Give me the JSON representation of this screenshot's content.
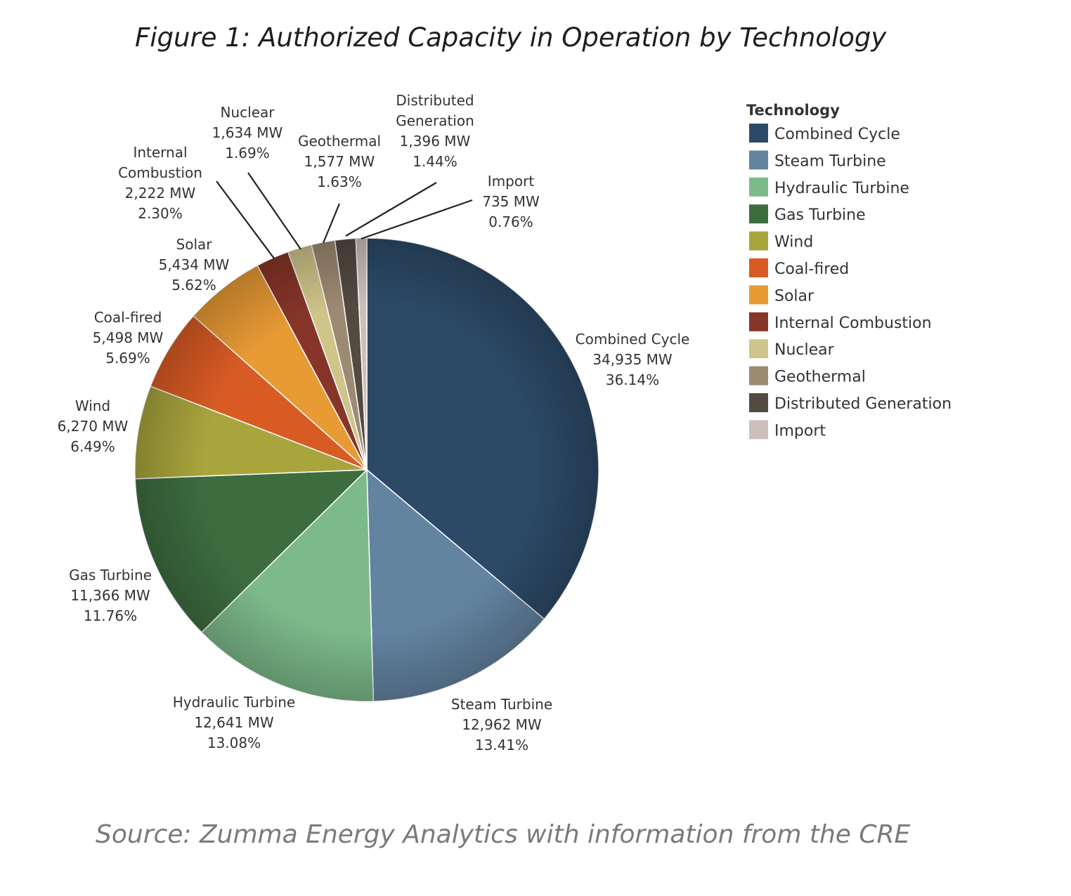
{
  "title": "Figure 1: Authorized Capacity in Operation by Technology",
  "source": "Source: Zumma Energy Analytics with information from the CRE",
  "chart_data": {
    "type": "pie",
    "legend_title": "Technology",
    "legend_position": "right",
    "slices": [
      {
        "name": "Combined Cycle",
        "label_lines": [
          "Combined Cycle"
        ],
        "value": 34935,
        "value_text": "34,935 MW",
        "percent": 36.14,
        "percent_text": "36.14%",
        "color": "#2c4a67"
      },
      {
        "name": "Steam Turbine",
        "label_lines": [
          "Steam Turbine"
        ],
        "value": 12962,
        "value_text": "12,962 MW",
        "percent": 13.41,
        "percent_text": "13.41%",
        "color": "#6384a1"
      },
      {
        "name": "Hydraulic Turbine",
        "label_lines": [
          "Hydraulic Turbine"
        ],
        "value": 12641,
        "value_text": "12,641 MW",
        "percent": 13.08,
        "percent_text": "13.08%",
        "color": "#7cba8a"
      },
      {
        "name": "Gas Turbine",
        "label_lines": [
          "Gas Turbine"
        ],
        "value": 11366,
        "value_text": "11,366 MW",
        "percent": 11.76,
        "percent_text": "11.76%",
        "color": "#3d6d3f"
      },
      {
        "name": "Wind",
        "label_lines": [
          "Wind"
        ],
        "value": 6270,
        "value_text": "6,270 MW",
        "percent": 6.49,
        "percent_text": "6.49%",
        "color": "#a9a53d"
      },
      {
        "name": "Coal-fired",
        "label_lines": [
          "Coal-fired"
        ],
        "value": 5498,
        "value_text": "5,498 MW",
        "percent": 5.69,
        "percent_text": "5.69%",
        "color": "#d95b24"
      },
      {
        "name": "Solar",
        "label_lines": [
          "Solar"
        ],
        "value": 5434,
        "value_text": "5,434 MW",
        "percent": 5.62,
        "percent_text": "5.62%",
        "color": "#e89a34"
      },
      {
        "name": "Internal Combustion",
        "label_lines": [
          "Internal",
          "Combustion"
        ],
        "value": 2222,
        "value_text": "2,222 MW",
        "percent": 2.3,
        "percent_text": "2.30%",
        "color": "#883529"
      },
      {
        "name": "Nuclear",
        "label_lines": [
          "Nuclear"
        ],
        "value": 1634,
        "value_text": "1,634 MW",
        "percent": 1.69,
        "percent_text": "1.69%",
        "color": "#cfc58a"
      },
      {
        "name": "Geothermal",
        "label_lines": [
          "Geothermal"
        ],
        "value": 1577,
        "value_text": "1,577 MW",
        "percent": 1.63,
        "percent_text": "1.63%",
        "color": "#9d8a72"
      },
      {
        "name": "Distributed Generation",
        "label_lines": [
          "Distributed",
          "Generation"
        ],
        "value": 1396,
        "value_text": "1,396 MW",
        "percent": 1.44,
        "percent_text": "1.44%",
        "color": "#534a42"
      },
      {
        "name": "Import",
        "label_lines": [
          "Import"
        ],
        "value": 735,
        "value_text": "735 MW",
        "percent": 0.76,
        "percent_text": "0.76%",
        "color": "#cdbfbb"
      }
    ]
  }
}
